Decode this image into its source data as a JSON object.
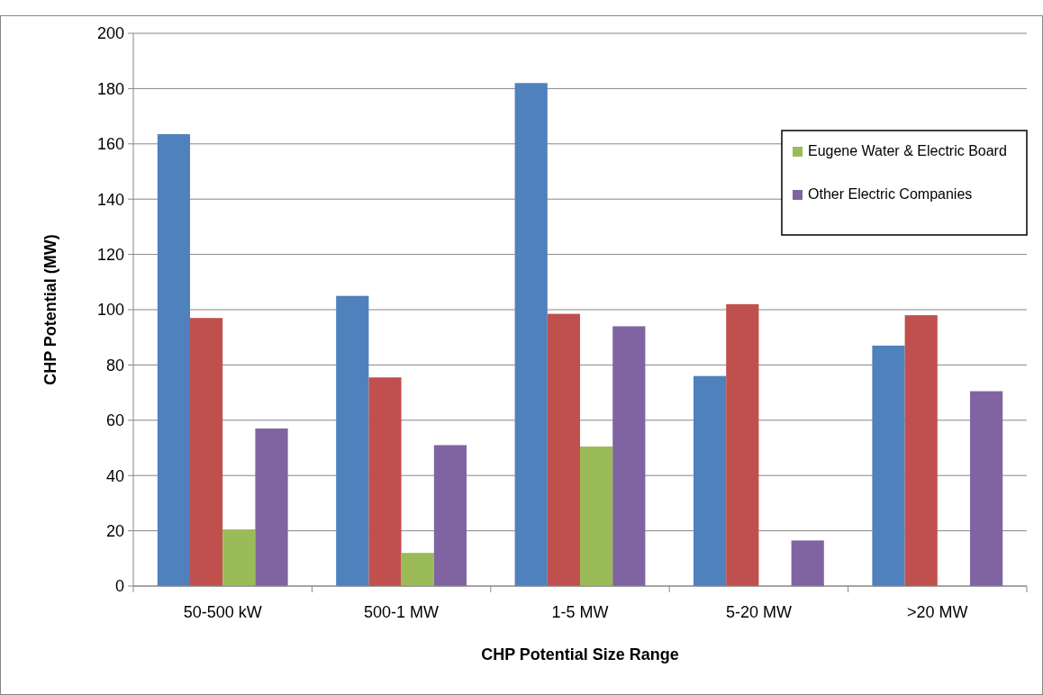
{
  "chart_data": {
    "type": "bar",
    "xlabel": "CHP Potential Size Range",
    "ylabel": "CHP Potential (MW)",
    "categories": [
      "50-500 kW",
      "500-1 MW",
      "1-5 MW",
      "5-20 MW",
      ">20 MW"
    ],
    "series": [
      {
        "color": "#4f81bd",
        "values": [
          163.5,
          105,
          182,
          76,
          87
        ]
      },
      {
        "color": "#c0504d",
        "values": [
          97,
          75.5,
          98.5,
          102,
          98
        ]
      },
      {
        "name": "Eugene Water & Electric Board",
        "color": "#9bbb59",
        "values": [
          20.5,
          12,
          50.5,
          null,
          null
        ]
      },
      {
        "name": "Other Electric Companies",
        "color": "#8064a2",
        "values": [
          57,
          51,
          94,
          16.5,
          70.5
        ]
      }
    ],
    "ylim": [
      0,
      200
    ],
    "yticks": [
      0,
      20,
      40,
      60,
      80,
      100,
      120,
      140,
      160,
      180,
      200
    ],
    "grid": "y",
    "legend": "top right"
  }
}
